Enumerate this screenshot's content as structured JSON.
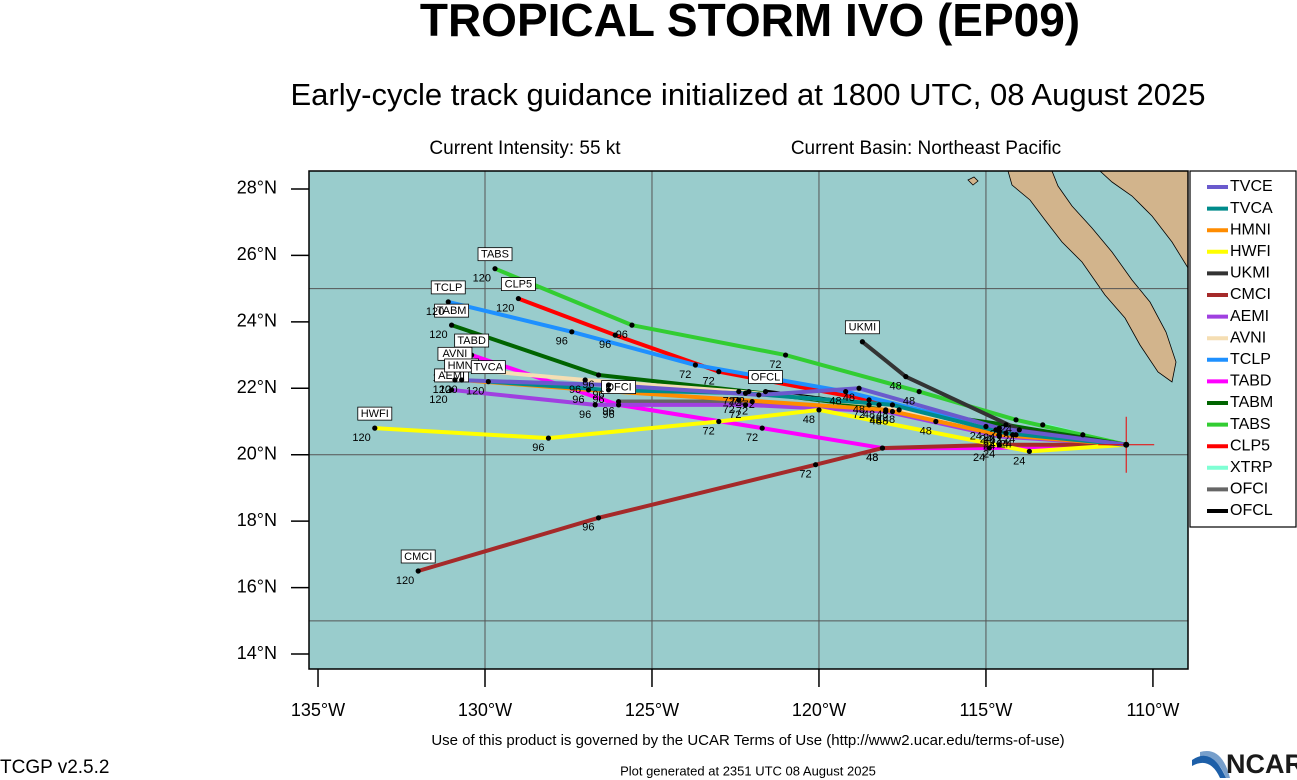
{
  "chart_data": {
    "type": "line",
    "title": "TROPICAL STORM IVO (EP09)",
    "subtitle": "Early-cycle track guidance initialized at 1800 UTC, 08 August 2025",
    "intensity": "Current Intensity: 55 kt",
    "basin": "Current Basin: Northeast Pacific",
    "terms": "Use of this product is governed by the UCAR Terms of Use (http://www2.ucar.edu/terms-of-use)",
    "version": "TCGP v2.5.2",
    "generated": "Plot generated at 2351 UTC   08 August 2025",
    "logo": "NCAR",
    "xlim": [
      -135.27,
      -108.95
    ],
    "ylim": [
      13.55,
      28.54
    ],
    "xticks": [
      {
        "value": -135,
        "label": "135°W"
      },
      {
        "value": -130,
        "label": "130°W"
      },
      {
        "value": -125,
        "label": "125°W"
      },
      {
        "value": -120,
        "label": "120°W"
      },
      {
        "value": -115,
        "label": "115°W"
      },
      {
        "value": -110,
        "label": "110°W"
      }
    ],
    "yticks": [
      {
        "value": 14,
        "label": "14°N"
      },
      {
        "value": 16,
        "label": "16°N"
      },
      {
        "value": 18,
        "label": "18°N"
      },
      {
        "value": 20,
        "label": "20°N"
      },
      {
        "value": 22,
        "label": "22°N"
      },
      {
        "value": 24,
        "label": "24°N"
      },
      {
        "value": 26,
        "label": "26°N"
      },
      {
        "value": 28,
        "label": "28°N"
      }
    ],
    "xgrid": [
      -130,
      -125,
      -120,
      -115
    ],
    "ygrid": [
      15,
      20,
      25
    ],
    "current_position": {
      "lon": -110.8,
      "lat": 20.3
    },
    "series": [
      {
        "name": "TVCE",
        "color": "#6a5acd",
        "tag": false,
        "x": [
          -110.8,
          -114.6,
          -118.8,
          -121.8,
          -126.3,
          -130.9
        ],
        "values": [
          20.3,
          20.8,
          22.0,
          21.8,
          22.1,
          22.25
        ],
        "point_labels": [
          null,
          "24",
          "48",
          "72",
          "96",
          "120"
        ]
      },
      {
        "name": "TVCA",
        "color": "#008b8b",
        "tag": true,
        "x": [
          -110.8,
          -114.4,
          -117.8,
          -122.2,
          -126.3,
          -129.9
        ],
        "values": [
          20.3,
          20.65,
          21.5,
          21.85,
          21.95,
          22.2
        ],
        "point_labels": [
          null,
          "24",
          "48",
          "72",
          "96",
          "120"
        ]
      },
      {
        "name": "HMNI",
        "color": "#ff8c00",
        "tag": true,
        "x": [
          -110.8,
          -114.6,
          -118.0,
          -122.4,
          -126.9,
          -130.7
        ],
        "values": [
          20.3,
          20.6,
          21.35,
          21.65,
          21.95,
          22.25
        ],
        "point_labels": [
          null,
          "24",
          "48",
          "72",
          "96",
          "120"
        ]
      },
      {
        "name": "HWFI",
        "color": "#ffff00",
        "tag": true,
        "x": [
          -110.8,
          -113.7,
          -120.0,
          -123.0,
          -128.1,
          -133.3
        ],
        "values": [
          20.3,
          20.1,
          21.35,
          21.0,
          20.5,
          20.8
        ],
        "point_labels": [
          null,
          "24",
          "48",
          "72",
          "96",
          "120"
        ]
      },
      {
        "name": "UKMI",
        "color": "#333333",
        "tag": true,
        "x": [
          -110.8,
          -114.0,
          -117.4,
          -118.7
        ],
        "values": [
          20.3,
          20.75,
          22.35,
          23.4
        ],
        "point_labels": [
          null,
          "24",
          "48",
          null
        ]
      },
      {
        "name": "CMCI",
        "color": "#a52a2a",
        "tag": true,
        "x": [
          -110.8,
          -114.6,
          -118.1,
          -120.1,
          -126.6,
          -132.0
        ],
        "values": [
          20.3,
          20.3,
          20.2,
          19.7,
          18.1,
          16.5
        ],
        "point_labels": [
          null,
          "24",
          "48",
          "72",
          "96",
          "120"
        ]
      },
      {
        "name": "AEMI",
        "color": "#a040e0",
        "tag": true,
        "x": [
          -110.8,
          -114.6,
          -118.0,
          -122.2,
          -126.7,
          -131.0
        ],
        "values": [
          20.3,
          20.55,
          21.3,
          21.5,
          21.5,
          21.95
        ],
        "point_labels": [
          null,
          "24",
          "48",
          "72",
          "96",
          "120"
        ]
      },
      {
        "name": "AVNI",
        "color": "#f5deb3",
        "tag": true,
        "x": [
          -110.8,
          -114.7,
          -118.2,
          -122.4,
          -127.0,
          -130.9
        ],
        "values": [
          20.3,
          20.75,
          21.5,
          21.9,
          22.25,
          22.6
        ],
        "point_labels": [
          null,
          "24",
          "48",
          "72",
          "96",
          "120"
        ]
      },
      {
        "name": "TCLP",
        "color": "#1e90ff",
        "tag": true,
        "x": [
          -110.8,
          -115.0,
          -119.2,
          -123.7,
          -127.4,
          -131.1
        ],
        "values": [
          20.3,
          20.85,
          21.9,
          22.7,
          23.7,
          24.6
        ],
        "point_labels": [
          null,
          "24",
          "48",
          "72",
          "96",
          "120"
        ]
      },
      {
        "name": "TABD",
        "color": "#ff00ff",
        "tag": true,
        "x": [
          -110.8,
          -114.9,
          -118.1,
          -121.7,
          -126.0,
          -130.4
        ],
        "values": [
          20.3,
          20.2,
          20.2,
          20.8,
          21.5,
          23.0
        ],
        "point_labels": [
          null,
          "24",
          "48",
          "72",
          "96",
          "120"
        ]
      },
      {
        "name": "TABM",
        "color": "#006400",
        "tag": true,
        "x": [
          -110.8,
          -114.4,
          -117.6,
          -122.1,
          -126.6,
          -131.0
        ],
        "values": [
          20.3,
          20.9,
          21.35,
          21.9,
          22.4,
          23.9
        ],
        "point_labels": [
          null,
          "24",
          "48",
          "72",
          "96",
          "120"
        ]
      },
      {
        "name": "TABS",
        "color": "#32cd32",
        "tag": true,
        "x": [
          -110.8,
          -114.1,
          -117.0,
          -121.0,
          -125.6,
          -129.7
        ],
        "values": [
          20.3,
          21.05,
          21.9,
          23.0,
          23.9,
          25.6
        ],
        "point_labels": [
          null,
          "24",
          "48",
          "72",
          "96",
          "120"
        ]
      },
      {
        "name": "CLP5",
        "color": "#ff0000",
        "tag": true,
        "x": [
          -110.8,
          -114.6,
          -118.5,
          -123.0,
          -126.1,
          -129.0
        ],
        "values": [
          20.3,
          20.7,
          21.65,
          22.5,
          23.6,
          24.7
        ],
        "point_labels": [
          null,
          "24",
          "48",
          "72",
          "96",
          "120"
        ]
      },
      {
        "name": "XTRP",
        "color": "#7fffd4",
        "tag": false,
        "x": [
          -110.8,
          -112.1,
          -113.3
        ],
        "values": [
          20.3,
          20.6,
          20.9
        ],
        "point_labels": [
          null,
          null,
          null
        ]
      },
      {
        "name": "OFCI",
        "color": "#666666",
        "tag": true,
        "x": [
          -110.8,
          -114.2,
          -117.8,
          -122.0,
          -126.0
        ],
        "values": [
          20.3,
          20.6,
          21.3,
          21.6,
          21.6
        ],
        "point_labels": [
          null,
          "24",
          "48",
          "72",
          "96"
        ]
      },
      {
        "name": "OFCL",
        "color": "#000000",
        "tag": true,
        "x": [
          -110.8,
          -114.1,
          -116.5,
          -118.5,
          -121.6
        ],
        "values": [
          20.3,
          20.6,
          21.0,
          21.5,
          21.9
        ],
        "point_labels": [
          null,
          "24",
          "48",
          "72",
          null
        ]
      }
    ]
  }
}
